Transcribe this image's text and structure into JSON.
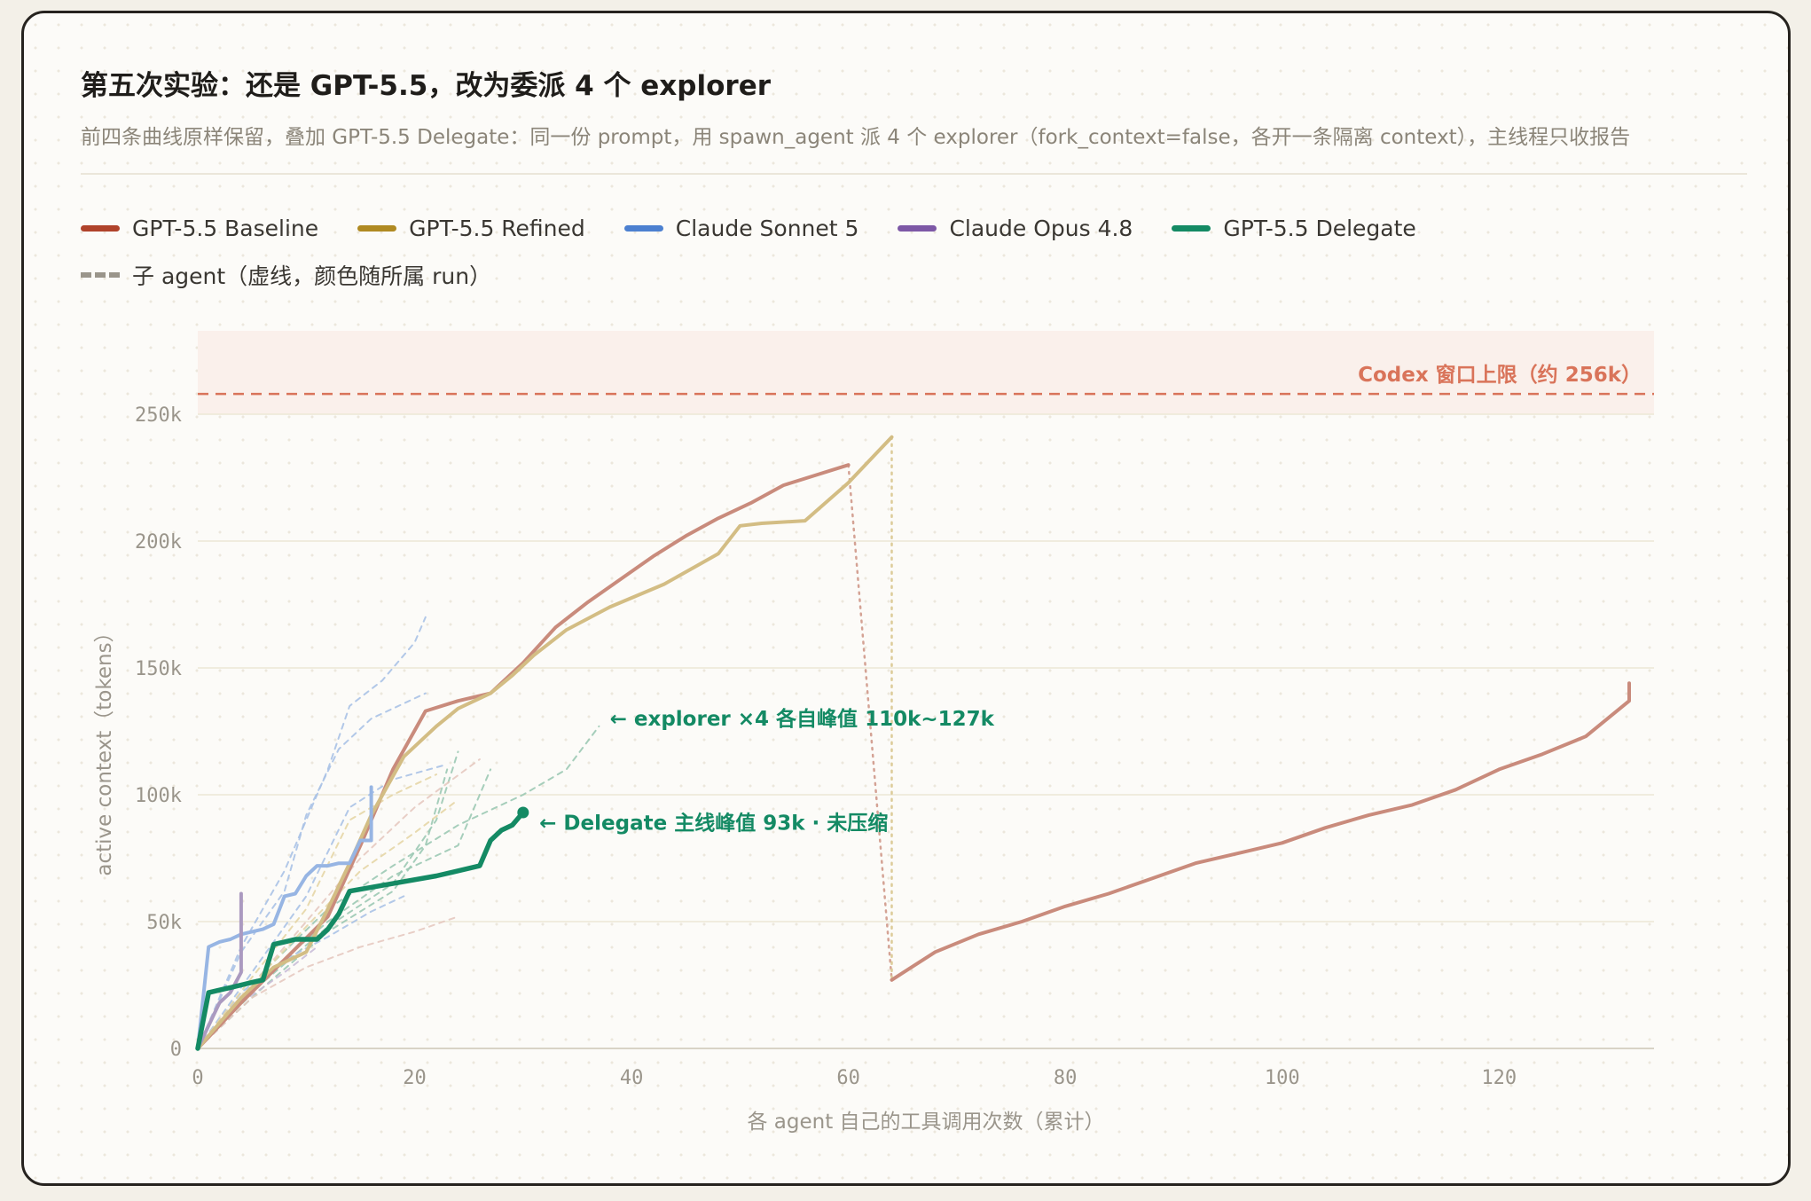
{
  "title": "第五次实验：还是 GPT-5.5，改为委派 4 个 explorer",
  "subtitle": "前四条曲线原样保留，叠加 GPT-5.5 Delegate：同一份 prompt，用 spawn_agent 派 4 个 explorer（fork_context=false，各开一条隔离 context），主线程只收报告",
  "legend": {
    "items": [
      {
        "label": "GPT-5.5 Baseline",
        "color": "#b0432b"
      },
      {
        "label": "GPT-5.5 Refined",
        "color": "#b08a22"
      },
      {
        "label": "Claude Sonnet 5",
        "color": "#4c80d0"
      },
      {
        "label": "Claude Opus 4.8",
        "color": "#7d58a6"
      },
      {
        "label": "GPT-5.5 Delegate",
        "color": "#148a64"
      }
    ],
    "subagent_label": "子 agent（虚线，颜色随所属 run）"
  },
  "chart_data": {
    "type": "line",
    "xlabel": "各 agent 自己的工具调用次数（累计）",
    "ylabel": "active context（tokens）",
    "xlim": [
      0,
      135
    ],
    "ylim": [
      0,
      280000
    ],
    "x_ticks": [
      0,
      20,
      40,
      60,
      80,
      100,
      120
    ],
    "y_ticks": [
      {
        "value": 0,
        "label": "0"
      },
      {
        "value": 50000,
        "label": "50k"
      },
      {
        "value": 100000,
        "label": "100k"
      },
      {
        "value": 150000,
        "label": "150k"
      },
      {
        "value": 200000,
        "label": "200k"
      },
      {
        "value": 250000,
        "label": "250k"
      }
    ],
    "grid": true,
    "legend_position": "top-left",
    "limit": {
      "value": 258000,
      "label": "Codex 窗口上限（约 256k）",
      "color": "#d9745a"
    },
    "series": [
      {
        "name": "GPT-5.5 Baseline",
        "color": "#c98b7c",
        "points": [
          [
            0,
            0
          ],
          [
            4,
            18000
          ],
          [
            8,
            35000
          ],
          [
            12,
            52000
          ],
          [
            15,
            80000
          ],
          [
            18,
            110000
          ],
          [
            21,
            133000
          ],
          [
            24,
            137000
          ],
          [
            27,
            140000
          ],
          [
            30,
            152000
          ],
          [
            33,
            166000
          ],
          [
            36,
            176000
          ],
          [
            39,
            185000
          ],
          [
            42,
            194000
          ],
          [
            45,
            202000
          ],
          [
            48,
            209000
          ],
          [
            51,
            215000
          ],
          [
            54,
            222000
          ],
          [
            57,
            226000
          ],
          [
            60,
            230000
          ]
        ]
      },
      {
        "name": "GPT-5.5 Baseline",
        "color": "#c98b7c",
        "points": [
          [
            64,
            27000
          ],
          [
            68,
            38000
          ],
          [
            72,
            45000
          ],
          [
            76,
            50000
          ],
          [
            80,
            56000
          ],
          [
            84,
            61000
          ],
          [
            88,
            67000
          ],
          [
            92,
            73000
          ],
          [
            96,
            77000
          ],
          [
            100,
            81000
          ],
          [
            104,
            87000
          ],
          [
            108,
            92000
          ],
          [
            112,
            96000
          ],
          [
            116,
            102000
          ],
          [
            120,
            110000
          ],
          [
            124,
            116000
          ],
          [
            128,
            123000
          ],
          [
            132,
            137000
          ],
          [
            132,
            144000
          ]
        ]
      },
      {
        "name": "GPT-5.5 Refined",
        "color": "#d3bd84",
        "points": [
          [
            0,
            0
          ],
          [
            4,
            20000
          ],
          [
            7,
            32000
          ],
          [
            10,
            38000
          ],
          [
            12,
            55000
          ],
          [
            14,
            73000
          ],
          [
            16,
            92000
          ],
          [
            19,
            115000
          ],
          [
            22,
            127000
          ],
          [
            24,
            134000
          ],
          [
            27,
            140000
          ],
          [
            29,
            147000
          ],
          [
            31,
            155000
          ],
          [
            34,
            165000
          ],
          [
            38,
            174000
          ],
          [
            43,
            183000
          ],
          [
            48,
            195000
          ],
          [
            50,
            206000
          ],
          [
            52,
            207000
          ],
          [
            56,
            208000
          ],
          [
            60,
            223000
          ],
          [
            64,
            241000
          ]
        ]
      },
      {
        "name": "Claude Sonnet 5",
        "color": "#97b5e3",
        "points": [
          [
            0,
            0
          ],
          [
            1,
            40000
          ],
          [
            2,
            42000
          ],
          [
            3,
            43000
          ],
          [
            4,
            45000
          ],
          [
            5,
            46000
          ],
          [
            6,
            47000
          ],
          [
            7,
            49000
          ],
          [
            8,
            60000
          ],
          [
            9,
            61000
          ],
          [
            10,
            68000
          ],
          [
            11,
            72000
          ],
          [
            12,
            72000
          ],
          [
            13,
            73000
          ],
          [
            14,
            73000
          ],
          [
            15,
            82000
          ],
          [
            16,
            82000
          ],
          [
            16,
            103000
          ]
        ]
      },
      {
        "name": "Claude Opus 4.8",
        "color": "#ab9ac0",
        "points": [
          [
            0,
            0
          ],
          [
            2,
            18000
          ],
          [
            3,
            22000
          ],
          [
            4,
            30000
          ],
          [
            4,
            61000
          ]
        ]
      },
      {
        "name": "GPT-5.5 Delegate",
        "color": "#148a64",
        "points": [
          [
            0,
            0
          ],
          [
            1,
            22000
          ],
          [
            2,
            23000
          ],
          [
            3,
            24000
          ],
          [
            4,
            25000
          ],
          [
            5,
            26000
          ],
          [
            6,
            27000
          ],
          [
            7,
            41000
          ],
          [
            8,
            42000
          ],
          [
            9,
            43000
          ],
          [
            10,
            43000
          ],
          [
            11,
            43000
          ],
          [
            12,
            47000
          ],
          [
            13,
            53000
          ],
          [
            14,
            62000
          ],
          [
            18,
            65000
          ],
          [
            22,
            68000
          ],
          [
            26,
            72000
          ],
          [
            27,
            82000
          ],
          [
            28,
            86000
          ],
          [
            29,
            88000
          ],
          [
            30,
            93000
          ]
        ]
      }
    ],
    "subagent_series": [
      {
        "color": "#9cc9b4",
        "points": [
          [
            0,
            0
          ],
          [
            6,
            30000
          ],
          [
            12,
            55000
          ],
          [
            18,
            72000
          ],
          [
            24,
            88000
          ],
          [
            30,
            100000
          ],
          [
            34,
            110000
          ],
          [
            37,
            127000
          ]
        ]
      },
      {
        "color": "#9cc9b4",
        "points": [
          [
            0,
            0
          ],
          [
            6,
            28000
          ],
          [
            12,
            50000
          ],
          [
            18,
            68000
          ],
          [
            24,
            80000
          ],
          [
            27,
            110000
          ]
        ]
      },
      {
        "color": "#9cc9b4",
        "points": [
          [
            0,
            0
          ],
          [
            6,
            26000
          ],
          [
            12,
            48000
          ],
          [
            18,
            65000
          ],
          [
            22,
            90000
          ],
          [
            24,
            117000
          ]
        ]
      },
      {
        "color": "#9cc9b4",
        "points": [
          [
            0,
            0
          ],
          [
            6,
            24000
          ],
          [
            12,
            46000
          ],
          [
            18,
            62000
          ],
          [
            21,
            80000
          ],
          [
            23,
            110000
          ]
        ]
      },
      {
        "color": "#aac2e6",
        "points": [
          [
            0,
            0
          ],
          [
            4,
            40000
          ],
          [
            8,
            70000
          ],
          [
            12,
            110000
          ],
          [
            14,
            135000
          ],
          [
            17,
            145000
          ],
          [
            20,
            160000
          ],
          [
            21,
            170000
          ]
        ]
      },
      {
        "color": "#aac2e6",
        "points": [
          [
            0,
            0
          ],
          [
            4,
            38000
          ],
          [
            8,
            62000
          ],
          [
            10,
            92000
          ],
          [
            13,
            118000
          ],
          [
            16,
            130000
          ],
          [
            21,
            140000
          ]
        ]
      },
      {
        "color": "#aac2e6",
        "points": [
          [
            0,
            0
          ],
          [
            5,
            30000
          ],
          [
            10,
            60000
          ],
          [
            14,
            95000
          ],
          [
            18,
            106000
          ],
          [
            23,
            112000
          ]
        ]
      },
      {
        "color": "#aac2e6",
        "points": [
          [
            0,
            0
          ],
          [
            4,
            22000
          ],
          [
            8,
            35000
          ],
          [
            12,
            44000
          ],
          [
            16,
            54000
          ],
          [
            19,
            60000
          ]
        ]
      },
      {
        "color": "#e6c9c0",
        "points": [
          [
            0,
            0
          ],
          [
            5,
            25000
          ],
          [
            10,
            50000
          ],
          [
            15,
            75000
          ],
          [
            20,
            95000
          ],
          [
            26,
            114000
          ]
        ]
      },
      {
        "color": "#e6c9c0",
        "points": [
          [
            0,
            0
          ],
          [
            5,
            20000
          ],
          [
            10,
            32000
          ],
          [
            15,
            40000
          ],
          [
            20,
            46000
          ],
          [
            24,
            52000
          ]
        ]
      },
      {
        "color": "#e5d6a6",
        "points": [
          [
            0,
            0
          ],
          [
            5,
            25000
          ],
          [
            10,
            48000
          ],
          [
            15,
            70000
          ],
          [
            20,
            85000
          ],
          [
            24,
            98000
          ]
        ]
      },
      {
        "color": "#e5d6a6",
        "points": [
          [
            0,
            0
          ],
          [
            5,
            28000
          ],
          [
            10,
            55000
          ],
          [
            14,
            90000
          ],
          [
            18,
            100000
          ],
          [
            22,
            108000
          ]
        ]
      },
      {
        "color": "#c9bcd8",
        "points": [
          [
            0,
            0
          ],
          [
            4,
            18000
          ],
          [
            8,
            30000
          ],
          [
            11,
            40000
          ]
        ]
      }
    ],
    "transitions": [
      {
        "color": "#d4a294",
        "points": [
          [
            60,
            230000
          ],
          [
            64,
            27000
          ]
        ]
      },
      {
        "color": "#dccb98",
        "points": [
          [
            64,
            241000
          ],
          [
            64,
            28000
          ]
        ]
      }
    ],
    "annotations": [
      {
        "text": "← explorer ×4 各自峰值 110k~127k",
        "x": 38,
        "y": 130000,
        "color": "#148a64"
      },
      {
        "text": "← Delegate 主线峰值 93k · 未压缩",
        "x": 31.5,
        "y": 89000,
        "color": "#148a64"
      }
    ],
    "endpoint_marker": {
      "x": 30,
      "y": 93000,
      "color": "#148a64"
    }
  }
}
